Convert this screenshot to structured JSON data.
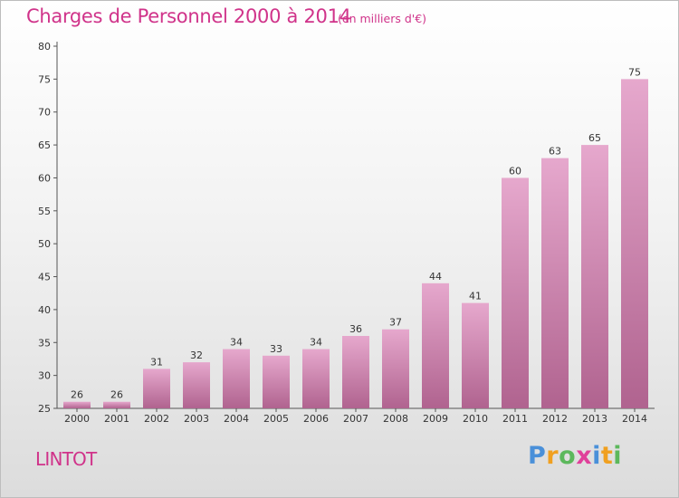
{
  "header": {
    "title": "Charges de Personnel 2000 à 2014",
    "subtitle": "(en milliers d'€)"
  },
  "footer": {
    "commune": "LINTOT",
    "logo_letters": [
      {
        "ch": "P",
        "color": "#4a90d9"
      },
      {
        "ch": "r",
        "color": "#f0a020"
      },
      {
        "ch": "o",
        "color": "#5cb85c"
      },
      {
        "ch": "x",
        "color": "#e0409a"
      },
      {
        "ch": "i",
        "color": "#4a90d9"
      },
      {
        "ch": "t",
        "color": "#f0a020"
      },
      {
        "ch": "i",
        "color": "#5cb85c"
      }
    ]
  },
  "colors": {
    "bar_top": "#e6a8cd",
    "bar_bottom": "#b0638f",
    "accent": "#d0338a"
  },
  "chart_data": {
    "type": "bar",
    "title": "Charges de Personnel 2000 à 2014",
    "subtitle": "(en milliers d'€)",
    "categories": [
      "2000",
      "2001",
      "2002",
      "2003",
      "2004",
      "2005",
      "2006",
      "2007",
      "2008",
      "2009",
      "2010",
      "2011",
      "2012",
      "2013",
      "2014"
    ],
    "values": [
      26,
      26,
      31,
      32,
      34,
      33,
      34,
      36,
      37,
      44,
      41,
      60,
      63,
      65,
      75
    ],
    "ylim": [
      25,
      80
    ],
    "yticks": [
      25,
      30,
      35,
      40,
      45,
      50,
      55,
      60,
      65,
      70,
      75,
      80
    ],
    "grid": false,
    "xlabel": "",
    "ylabel": ""
  }
}
